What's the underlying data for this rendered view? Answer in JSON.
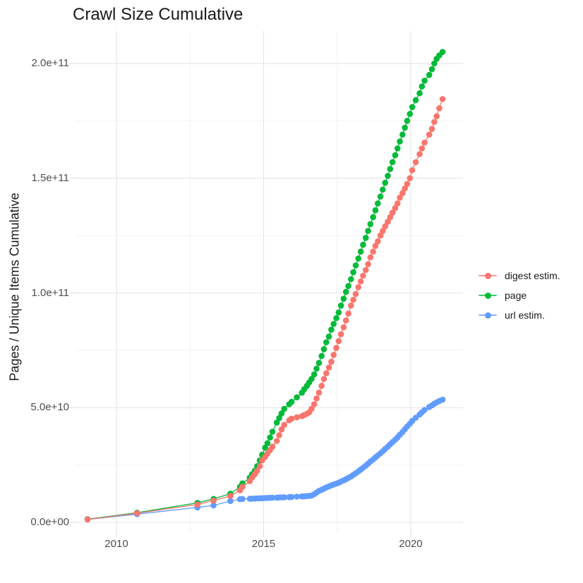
{
  "chart_data": {
    "type": "line",
    "title": "Crawl Size Cumulative",
    "xlabel": "",
    "ylabel": "Pages / Unique Items Cumulative",
    "grid": true,
    "marker": "circle",
    "line_and_points": true,
    "legend_position": "right",
    "values_unit_note": "series values are in units of 1e9 (billions); y axis shows scientific notation",
    "x_range": [
      2008.585,
      2021.776
    ],
    "y_range_e9": [
      -4.3,
      214.14
    ],
    "x_ticks": {
      "values": [
        2010,
        2015,
        2020
      ],
      "labels": [
        "2010",
        "2015",
        "2020"
      ]
    },
    "x_minor_ticks": [
      2012.5,
      2017.5
    ],
    "y_ticks": {
      "values_e9": [
        0,
        50,
        100,
        150,
        200
      ],
      "labels": [
        "0.0e+00",
        "5.0e+10",
        "1.0e+11",
        "1.5e+11",
        "2.0e+11"
      ]
    },
    "y_minor_ticks_e9": [
      25,
      75,
      125,
      175
    ],
    "x": [
      2009.02,
      2010.7,
      2012.75,
      2013.3,
      2013.87,
      2014.2,
      2014.28,
      2014.53,
      2014.61,
      2014.7,
      2014.78,
      2014.87,
      2014.95,
      2015.05,
      2015.13,
      2015.22,
      2015.3,
      2015.45,
      2015.53,
      2015.61,
      2015.7,
      2015.87,
      2015.95,
      2016.13,
      2016.3,
      2016.38,
      2016.47,
      2016.55,
      2016.63,
      2016.72,
      2016.8,
      2016.88,
      2016.97,
      2017.05,
      2017.13,
      2017.22,
      2017.3,
      2017.38,
      2017.47,
      2017.55,
      2017.63,
      2017.72,
      2017.8,
      2017.88,
      2017.97,
      2018.05,
      2018.13,
      2018.22,
      2018.3,
      2018.38,
      2018.47,
      2018.55,
      2018.63,
      2018.72,
      2018.8,
      2018.88,
      2018.97,
      2019.05,
      2019.13,
      2019.22,
      2019.3,
      2019.38,
      2019.47,
      2019.55,
      2019.63,
      2019.72,
      2019.8,
      2019.88,
      2019.97,
      2020.05,
      2020.17,
      2020.3,
      2020.38,
      2020.47,
      2020.63,
      2020.72,
      2020.8,
      2020.88,
      2020.97,
      2021.08
    ],
    "series": [
      {
        "name": "digest estim.",
        "color": "#F8766D",
        "values_e9": [
          1.3,
          4.0,
          7.8,
          9.5,
          11.5,
          14,
          15.5,
          18,
          19.5,
          21,
          22.5,
          24.5,
          27,
          28.5,
          30,
          31.5,
          33,
          35.5,
          38,
          40.5,
          42.5,
          44.5,
          45.2,
          45.8,
          46.3,
          46.8,
          47.3,
          48,
          49.5,
          51.5,
          54,
          56.5,
          59.5,
          62.5,
          65,
          67.5,
          70,
          73,
          76,
          79,
          82,
          85,
          88,
          91,
          94.5,
          97,
          99.5,
          102.5,
          105,
          107.5,
          110,
          112.5,
          115.5,
          118,
          120.5,
          122.5,
          125,
          127,
          129,
          131,
          133,
          135,
          137,
          139,
          141.5,
          143.5,
          145.5,
          147.5,
          150,
          153.5,
          157,
          160.5,
          163,
          165.5,
          169,
          171.5,
          174.5,
          177,
          180.5,
          184.5
        ]
      },
      {
        "name": "page",
        "color": "#00BA38",
        "values_e9": [
          1.4,
          4.2,
          8.5,
          10.2,
          12.5,
          15.5,
          17,
          19.5,
          21,
          22.5,
          24.5,
          27,
          29.5,
          32.5,
          34.5,
          37,
          39.5,
          43.5,
          45.5,
          47.5,
          49.5,
          51.5,
          52.5,
          54.5,
          56.5,
          58,
          59.5,
          61,
          62.5,
          64.5,
          67,
          69.5,
          72.5,
          75.5,
          78.5,
          81,
          84,
          86.5,
          89,
          91.5,
          94.5,
          97.5,
          100.5,
          103,
          106,
          109,
          112,
          115,
          118,
          121,
          124,
          127,
          130,
          133,
          136,
          139,
          142,
          145,
          148,
          151,
          154,
          157,
          160,
          163,
          166,
          169,
          172,
          175,
          178,
          181,
          184,
          187,
          190,
          192.5,
          195,
          197.5,
          200,
          202,
          203.5,
          205
        ]
      },
      {
        "name": "url estim.",
        "color": "#619CFF",
        "values_e9": [
          1.25,
          3.6,
          6.5,
          7.4,
          9.3,
          10.1,
          10.2,
          10.3,
          10.35,
          10.4,
          10.45,
          10.5,
          10.55,
          10.6,
          10.65,
          10.7,
          10.75,
          10.8,
          10.85,
          10.9,
          10.95,
          11.0,
          11.1,
          11.2,
          11.3,
          11.35,
          11.45,
          11.55,
          11.7,
          12.3,
          13.0,
          13.7,
          14.2,
          14.7,
          15.2,
          15.7,
          16.1,
          16.5,
          16.9,
          17.3,
          17.8,
          18.3,
          18.8,
          19.4,
          20.0,
          20.7,
          21.4,
          22.2,
          23.0,
          23.8,
          24.7,
          25.6,
          26.5,
          27.4,
          28.3,
          29.2,
          30.1,
          31.0,
          32.0,
          33.0,
          34.0,
          35.0,
          36.0,
          37.0,
          38.2,
          39.4,
          40.6,
          41.8,
          43.0,
          44.2,
          45.6,
          47.0,
          48.0,
          49.0,
          50.3,
          51.0,
          51.7,
          52.3,
          52.9,
          53.5
        ]
      }
    ],
    "draw_order": [
      "page",
      "url estim.",
      "digest estim."
    ]
  }
}
